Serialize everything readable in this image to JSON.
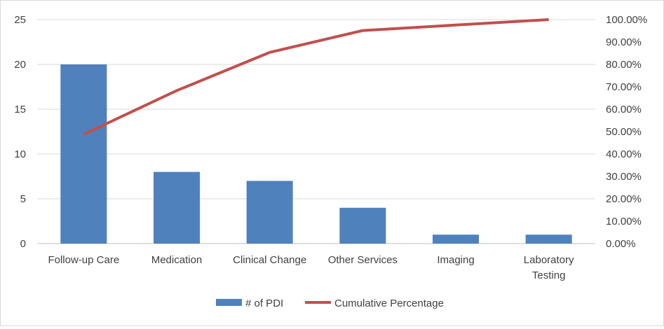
{
  "chart_data": {
    "type": "bar+line",
    "categories": [
      "Follow-up Care",
      "Medication",
      "Clinical Change",
      "Other Services",
      "Imaging",
      "Laboratory Testing"
    ],
    "category_lines": [
      [
        "Follow-up Care"
      ],
      [
        "Medication"
      ],
      [
        "Clinical Change"
      ],
      [
        "Other Services"
      ],
      [
        "Imaging"
      ],
      [
        "Laboratory",
        "Testing"
      ]
    ],
    "series": [
      {
        "name": "# of PDI",
        "type": "bar",
        "axis": "left",
        "color": "#4f81bd",
        "values": [
          20,
          8,
          7,
          4,
          1,
          1
        ]
      },
      {
        "name": "Cumulative Percentage",
        "type": "line",
        "axis": "right",
        "color": "#c0504d",
        "values": [
          48.78,
          68.29,
          85.37,
          95.12,
          97.56,
          100.0
        ]
      }
    ],
    "y_left": {
      "min": 0,
      "max": 25,
      "step": 5,
      "tick_labels": [
        "0",
        "5",
        "10",
        "15",
        "20",
        "25"
      ]
    },
    "y_right": {
      "min": 0,
      "max": 100,
      "step": 10,
      "tick_labels": [
        "0.00%",
        "10.00%",
        "20.00%",
        "30.00%",
        "40.00%",
        "50.00%",
        "60.00%",
        "70.00%",
        "80.00%",
        "90.00%",
        "100.00%"
      ]
    },
    "grid": "horizontal",
    "legend_position": "bottom"
  }
}
